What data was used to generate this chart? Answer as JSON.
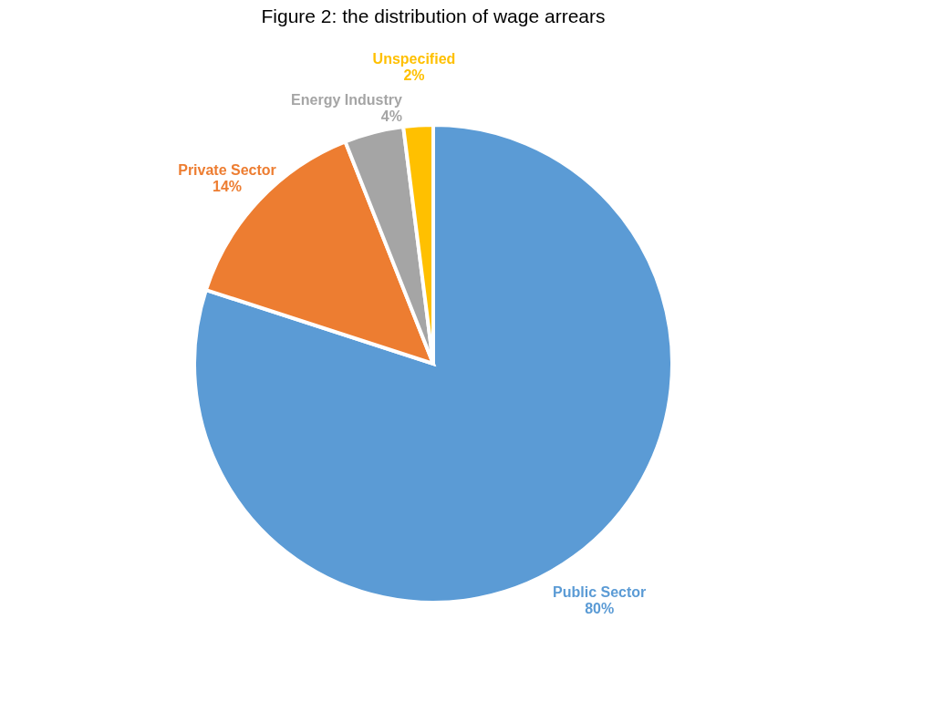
{
  "chart_data": {
    "type": "pie",
    "title": "Figure 2: the distribution of wage arrears",
    "categories": [
      "Public Sector",
      "Private Sector",
      "Energy Industry",
      "Unspecified"
    ],
    "values": [
      80,
      14,
      4,
      2
    ],
    "colors": [
      "#5b9bd5",
      "#ed7d31",
      "#a5a5a5",
      "#ffc000"
    ],
    "value_labels": [
      "80%",
      "14%",
      "4%",
      "2%"
    ],
    "legend": false
  }
}
